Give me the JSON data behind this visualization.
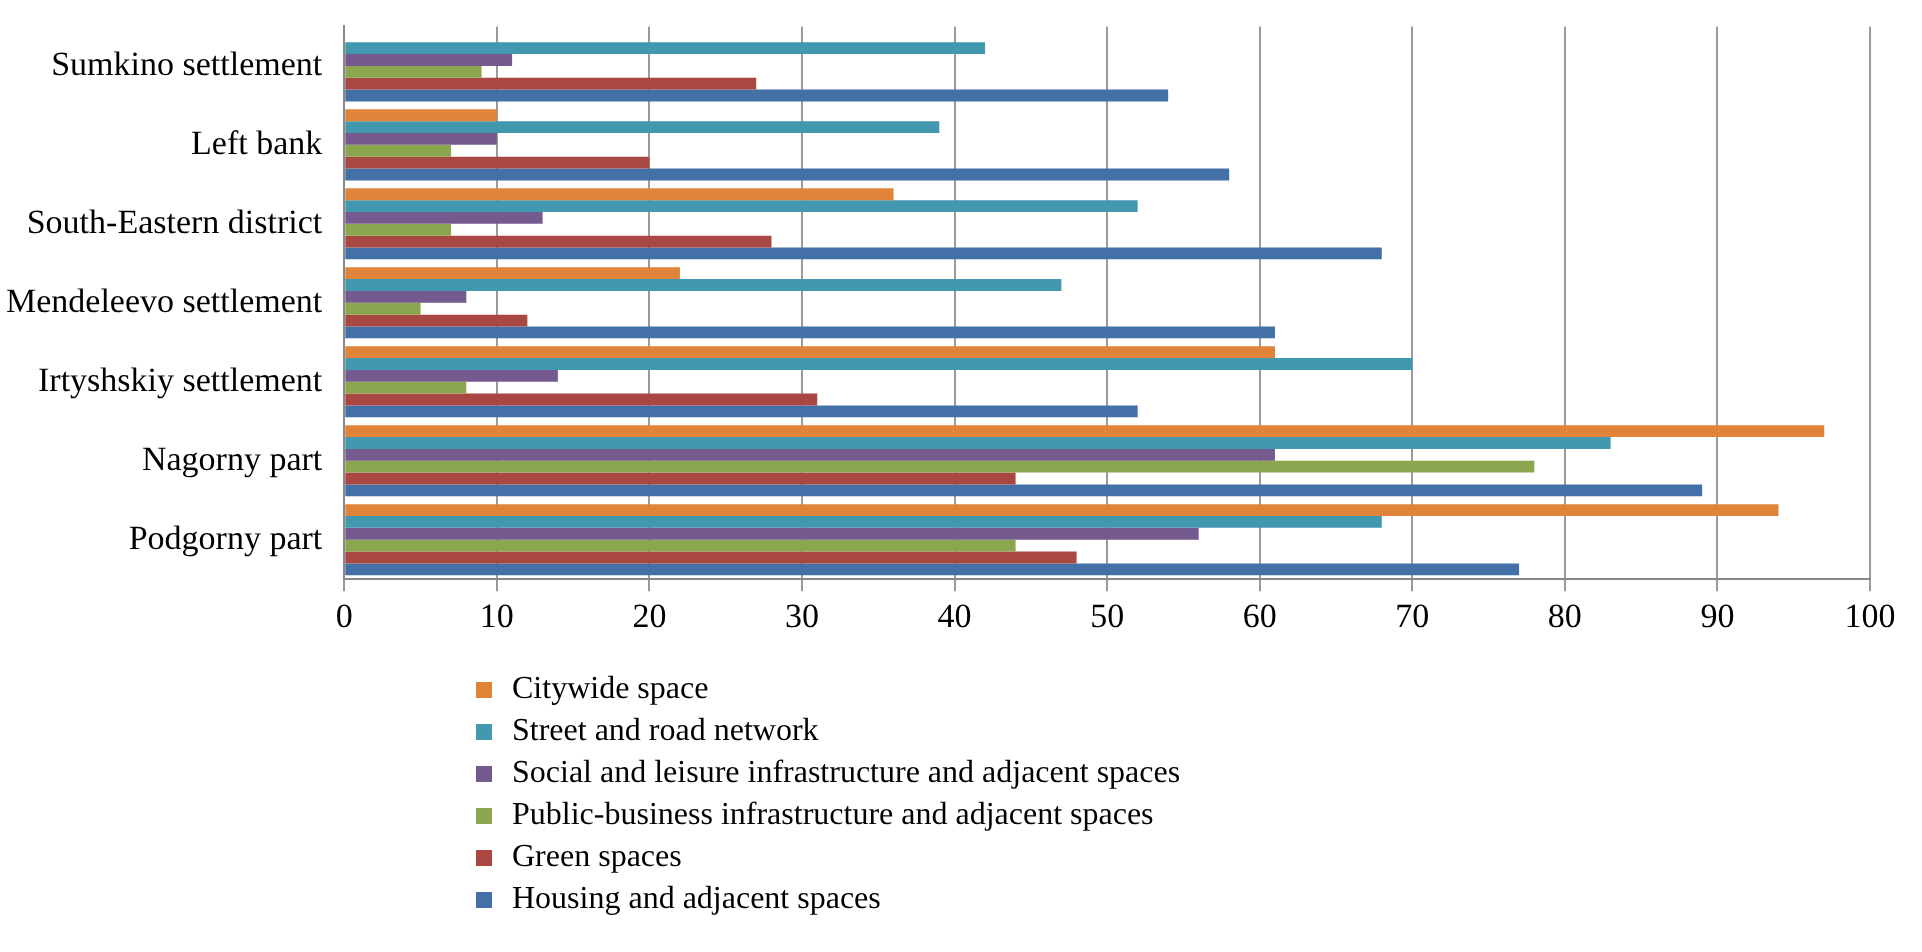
{
  "chart_data": {
    "type": "bar",
    "orientation": "horizontal",
    "categories": [
      "Sumkino settlement",
      "Left bank",
      "South-Eastern district",
      "Mendeleevo settlement",
      "Irtyshskiy settlement",
      "Nagorny part",
      "Podgorny part"
    ],
    "series": [
      {
        "name": "Citywide space",
        "color": "#e0843a",
        "values": [
          null,
          10,
          36,
          22,
          61,
          97,
          94
        ]
      },
      {
        "name": "Street and road network",
        "color": "#4198af",
        "values": [
          42,
          39,
          52,
          47,
          70,
          83,
          68
        ]
      },
      {
        "name": "Social and leisure infrastructure and adjacent spaces",
        "color": "#745a8e",
        "values": [
          11,
          10,
          13,
          8,
          14,
          61,
          56
        ]
      },
      {
        "name": "Public-business infrastructure and adjacent spaces",
        "color": "#8ba64e",
        "values": [
          9,
          7,
          7,
          5,
          8,
          78,
          44
        ]
      },
      {
        "name": "Green spaces",
        "color": "#a94743",
        "values": [
          27,
          20,
          28,
          12,
          31,
          44,
          48
        ]
      },
      {
        "name": "Housing and adjacent spaces",
        "color": "#4470a8",
        "values": [
          54,
          58,
          68,
          61,
          52,
          89,
          77
        ]
      }
    ],
    "xlim": [
      0,
      100
    ],
    "xticks": [
      0,
      10,
      20,
      30,
      40,
      50,
      60,
      70,
      80,
      90,
      100
    ],
    "grid": "x",
    "legend": "bottom left"
  }
}
